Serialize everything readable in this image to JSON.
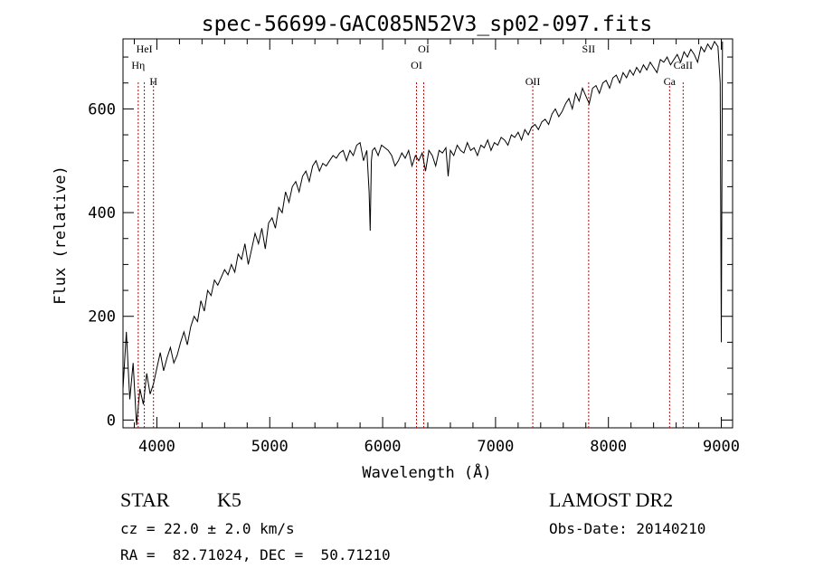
{
  "chart_data": {
    "type": "line",
    "title": "spec-56699-GAC085N52V3_sp02-097.fits",
    "xlabel": "Wavelength (Å)",
    "ylabel": "Flux (relative)",
    "xlim": [
      3700,
      9100
    ],
    "ylim": [
      -15,
      735
    ],
    "x_ticks": [
      4000,
      5000,
      6000,
      7000,
      8000,
      9000
    ],
    "y_ticks": [
      0,
      200,
      400,
      600
    ],
    "series": [
      {
        "x": [
          3700,
          3730,
          3760,
          3790,
          3820,
          3850,
          3880,
          3910,
          3940,
          3970,
          4000,
          4030,
          4060,
          4090,
          4120,
          4150,
          4180,
          4210,
          4240,
          4270,
          4300,
          4330,
          4360,
          4390,
          4420,
          4450,
          4480,
          4510,
          4540,
          4570,
          4600,
          4630,
          4660,
          4690,
          4720,
          4750,
          4780,
          4810,
          4840,
          4870,
          4900,
          4930,
          4960,
          4990,
          5020,
          5050,
          5080,
          5110,
          5140,
          5170,
          5200,
          5230,
          5260,
          5290,
          5320,
          5350,
          5380,
          5410,
          5440,
          5470,
          5500,
          5530,
          5560,
          5590,
          5620,
          5650,
          5680,
          5710,
          5740,
          5770,
          5800,
          5830,
          5860,
          5880,
          5890,
          5900,
          5910,
          5930,
          5960,
          5990,
          6020,
          6050,
          6080,
          6110,
          6140,
          6170,
          6200,
          6230,
          6260,
          6290,
          6320,
          6350,
          6380,
          6410,
          6440,
          6470,
          6500,
          6530,
          6560,
          6580,
          6600,
          6630,
          6660,
          6690,
          6720,
          6750,
          6780,
          6810,
          6840,
          6870,
          6900,
          6930,
          6960,
          6990,
          7020,
          7050,
          7080,
          7110,
          7140,
          7170,
          7200,
          7230,
          7260,
          7290,
          7320,
          7350,
          7380,
          7410,
          7440,
          7470,
          7500,
          7530,
          7560,
          7590,
          7620,
          7650,
          7680,
          7710,
          7740,
          7770,
          7800,
          7830,
          7860,
          7890,
          7920,
          7950,
          7980,
          8010,
          8040,
          8070,
          8100,
          8130,
          8160,
          8190,
          8220,
          8250,
          8280,
          8310,
          8340,
          8370,
          8400,
          8430,
          8460,
          8490,
          8520,
          8550,
          8580,
          8610,
          8640,
          8670,
          8700,
          8730,
          8760,
          8790,
          8820,
          8850,
          8880,
          8910,
          8940,
          8970,
          8990,
          9000,
          9010
        ],
        "y": [
          60,
          170,
          40,
          110,
          -10,
          60,
          30,
          90,
          50,
          70,
          100,
          130,
          95,
          120,
          140,
          110,
          125,
          150,
          170,
          145,
          180,
          200,
          190,
          230,
          210,
          250,
          240,
          270,
          260,
          275,
          290,
          280,
          300,
          285,
          320,
          310,
          340,
          300,
          330,
          360,
          340,
          370,
          330,
          380,
          390,
          370,
          410,
          400,
          440,
          420,
          450,
          460,
          440,
          470,
          480,
          460,
          490,
          500,
          480,
          495,
          490,
          500,
          510,
          505,
          515,
          520,
          500,
          520,
          510,
          530,
          535,
          500,
          520,
          440,
          365,
          500,
          520,
          525,
          510,
          530,
          525,
          520,
          510,
          490,
          500,
          515,
          505,
          520,
          490,
          510,
          500,
          515,
          480,
          520,
          510,
          490,
          520,
          515,
          525,
          470,
          520,
          510,
          530,
          520,
          515,
          535,
          520,
          525,
          510,
          530,
          525,
          540,
          520,
          535,
          530,
          545,
          540,
          530,
          550,
          545,
          555,
          540,
          560,
          550,
          565,
          570,
          560,
          575,
          580,
          570,
          590,
          600,
          585,
          595,
          610,
          620,
          600,
          630,
          615,
          640,
          625,
          610,
          640,
          645,
          630,
          650,
          655,
          640,
          660,
          665,
          650,
          670,
          660,
          675,
          665,
          680,
          670,
          685,
          675,
          690,
          680,
          670,
          695,
          690,
          700,
          685,
          695,
          705,
          690,
          710,
          700,
          715,
          705,
          690,
          720,
          710,
          725,
          715,
          730,
          720,
          650,
          150,
          730
        ]
      }
    ],
    "line_marks": [
      {
        "label": "HeI",
        "x": 3889
      },
      {
        "label": "Hη",
        "x": 3835
      },
      {
        "label": "H",
        "x": 3970
      },
      {
        "label": "OI",
        "x": 6364
      },
      {
        "label": "OI",
        "x": 6300
      },
      {
        "label": "OII",
        "x": 7330
      },
      {
        "label": "SII",
        "x": 7825
      },
      {
        "label": "CaII",
        "x": 8662
      },
      {
        "label": "Ca",
        "x": 8542
      }
    ],
    "grid": false
  },
  "footer": {
    "object_class": "STAR",
    "subclass": "K5",
    "survey": "LAMOST DR2",
    "cz": "cz = 22.0 ± 2.0 km/s",
    "obs_date": "Obs-Date: 20140210",
    "coords": "RA =  82.71024, DEC =  50.71210"
  },
  "colors": {
    "axis": "#000000",
    "spectrum": "#000000",
    "line_mark": "#cc0000"
  }
}
